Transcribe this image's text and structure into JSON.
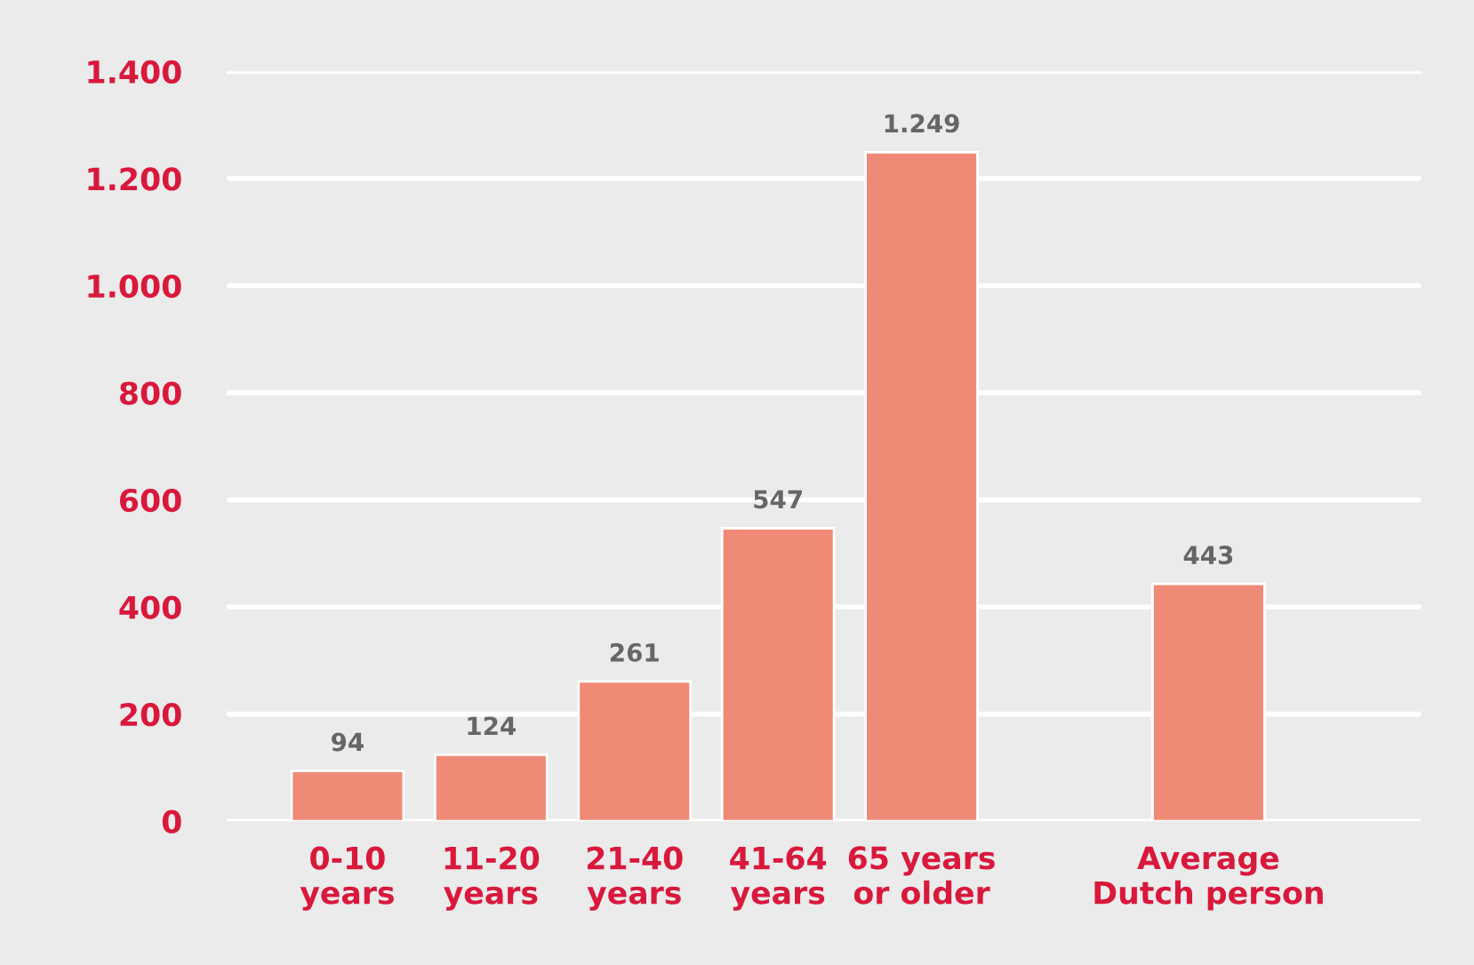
{
  "chart_data": {
    "type": "bar",
    "categories": [
      "0-10\nyears",
      "11-20\nyears",
      "21-40\nyears",
      "41-64\nyears",
      "65 years\nor older",
      null,
      "Average\nDutch person"
    ],
    "values": [
      94,
      124,
      261,
      547,
      1249,
      null,
      443
    ],
    "value_labels": [
      "94",
      "124",
      "261",
      "547",
      "1.249",
      null,
      "443"
    ],
    "color": "#ef8a76",
    "ylim": [
      0,
      1400
    ],
    "yticks": [
      0,
      200,
      400,
      600,
      800,
      {
        "value": 1000,
        "label": "1.000"
      },
      {
        "value": 1200,
        "label": "1.200"
      },
      {
        "value": 1400,
        "label": "1.400"
      }
    ],
    "grid": "y"
  }
}
